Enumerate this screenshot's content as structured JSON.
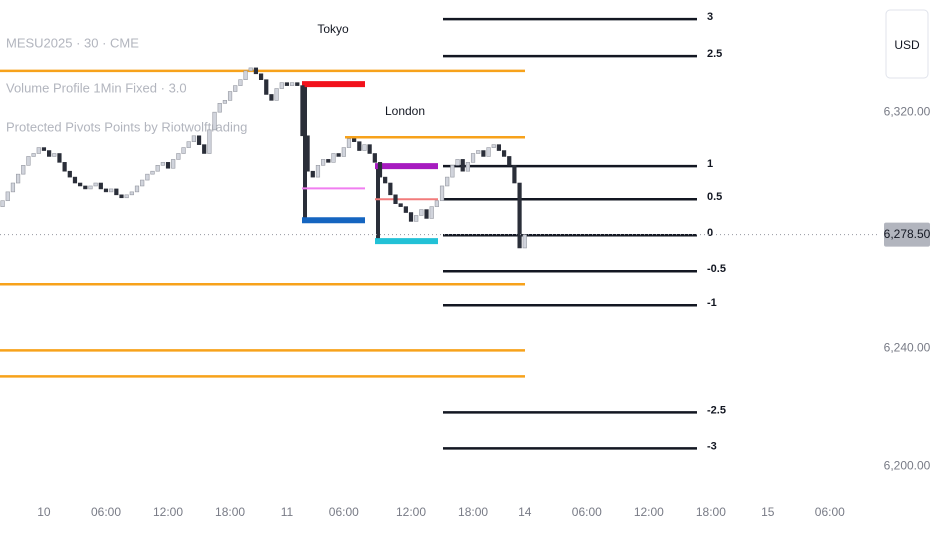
{
  "chart_data": {
    "type": "candlestick",
    "title": "MESU2025 · 30 · CME",
    "indicators": [
      "Volume Profile 1Min Fixed · 3.0",
      "Protected Pivots Points by Riotwolftrading"
    ],
    "currency": "USD",
    "up_color": "#d1d4dc",
    "down_color": "#2a2e39",
    "categories": [
      null,
      null,
      null,
      null,
      null,
      null,
      null,
      null,
      "10",
      null,
      null,
      null,
      null,
      null,
      null,
      null,
      null,
      null,
      null,
      null,
      "06:00",
      null,
      null,
      null,
      null,
      null,
      null,
      null,
      null,
      null,
      null,
      null,
      "12:00",
      null,
      null,
      null,
      null,
      null,
      null,
      null,
      null,
      null,
      null,
      null,
      "18:00",
      null,
      null,
      null,
      null,
      null,
      null,
      null,
      null,
      null,
      null,
      "11",
      null,
      null,
      null,
      null,
      null,
      null,
      null,
      null,
      null,
      null,
      "06:00",
      null,
      null,
      null,
      null,
      null,
      null,
      null,
      null,
      null,
      null,
      null,
      null,
      "12:00",
      null,
      null,
      null,
      null,
      null,
      null,
      null,
      null,
      null,
      null,
      null,
      "18:00",
      null,
      null,
      null,
      null,
      null,
      null,
      null,
      null,
      null,
      "14",
      null,
      null,
      null,
      null,
      null,
      null,
      null,
      null,
      null,
      null,
      null,
      "06:00",
      null,
      null,
      null,
      null,
      null,
      null,
      null,
      null,
      null,
      null,
      null,
      "12:00",
      null,
      null,
      null,
      null,
      null,
      null,
      null,
      null,
      null,
      null,
      null,
      "18:00",
      null,
      null,
      null,
      null,
      null,
      null,
      null,
      null,
      null,
      null,
      "15",
      null,
      null,
      null,
      null,
      null,
      null,
      null,
      null,
      null,
      null,
      null,
      "06:00"
    ],
    "open": [
      6288,
      6290,
      6293,
      6296,
      6299,
      6302,
      6305,
      6306,
      6308,
      6307,
      6305,
      6306,
      6303,
      6300,
      6298,
      6296,
      6295,
      6294,
      6295,
      6296,
      6294,
      6293,
      6294,
      6292,
      6291,
      6292,
      6293,
      6295,
      6297,
      6299,
      6300,
      6302,
      6303,
      6301,
      6304,
      6306,
      6308,
      6310,
      6312,
      6309,
      6306,
      6314,
      6320,
      6323,
      6324,
      6327,
      6329,
      6331,
      6334,
      6335,
      6333,
      6331,
      6326,
      6324,
      6328,
      6330,
      6329,
      6330,
      6329,
      6312,
      6300,
      6298,
      6302,
      6304,
      6303,
      6306,
      6305,
      6308,
      6311,
      6310,
      6307,
      6309,
      6306,
      6303,
      6298,
      6296,
      6292,
      6289,
      6288,
      6286,
      6283,
      6285,
      6287,
      6284,
      6288,
      6290,
      6295,
      6298,
      6302,
      6304,
      6300,
      6303,
      6306,
      6307,
      6305,
      6308,
      6309,
      6307,
      6305,
      6302,
      6296,
      6274,
      null,
      null,
      null,
      null,
      null,
      null,
      null,
      null,
      null,
      null,
      null,
      null,
      null,
      null,
      null,
      null,
      null,
      null,
      null,
      null,
      null,
      null,
      null,
      null,
      null,
      null,
      null,
      null,
      null,
      null,
      null,
      null,
      null,
      null,
      null,
      null,
      null,
      null,
      null,
      null,
      null,
      null,
      null,
      null,
      null,
      null,
      null,
      null,
      null,
      null,
      null,
      null,
      null,
      null,
      null,
      null,
      null,
      null,
      null
    ],
    "close": [
      6290,
      6293,
      6296,
      6299,
      6302,
      6305,
      6306,
      6308,
      6307,
      6305,
      6306,
      6303,
      6300,
      6298,
      6296,
      6295,
      6294,
      6295,
      6296,
      6294,
      6293,
      6294,
      6292,
      6291,
      6292,
      6293,
      6295,
      6297,
      6299,
      6300,
      6302,
      6303,
      6301,
      6304,
      6306,
      6308,
      6310,
      6312,
      6309,
      6306,
      6314,
      6320,
      6323,
      6324,
      6327,
      6329,
      6331,
      6334,
      6335,
      6333,
      6331,
      6326,
      6324,
      6328,
      6330,
      6329,
      6330,
      6329,
      6312,
      6300,
      6298,
      6302,
      6304,
      6303,
      6306,
      6305,
      6308,
      6311,
      6310,
      6307,
      6309,
      6306,
      6303,
      6298,
      6296,
      6292,
      6289,
      6288,
      6286,
      6283,
      6285,
      6287,
      6284,
      6288,
      6290,
      6295,
      6298,
      6302,
      6304,
      6300,
      6303,
      6306,
      6307,
      6305,
      6308,
      6309,
      6307,
      6305,
      6302,
      6296,
      6274,
      6278.5,
      null,
      null,
      null,
      null,
      null,
      null,
      null,
      null,
      null,
      null,
      null,
      null,
      null,
      null,
      null,
      null,
      null,
      null,
      null,
      null,
      null,
      null,
      null,
      null,
      null,
      null,
      null,
      null,
      null,
      null,
      null,
      null,
      null,
      null,
      null,
      null,
      null,
      null,
      null,
      null,
      null,
      null,
      null,
      null,
      null,
      null,
      null,
      null,
      null,
      null,
      null,
      null,
      null,
      null,
      null,
      null,
      null,
      null,
      null
    ],
    "ylim": [
      6192,
      6358
    ],
    "yticks": [
      {
        "value": 6320,
        "label": "6,320.00"
      },
      {
        "value": 6240,
        "label": "6,240.00"
      },
      {
        "value": 6200,
        "label": "6,200.00"
      }
    ],
    "last_price": {
      "value": 6278.5,
      "label": "6,278.50"
    },
    "pivot_color": "#f7a21b",
    "pivot_levels": [
      6334,
      6311.5,
      6261.7,
      6239.3,
      6230.5
    ],
    "fib_color": "#131722",
    "fib_levels": [
      {
        "label": 3,
        "price": 6351.5
      },
      {
        "label": 2.5,
        "price": 6339
      },
      {
        "label": 1,
        "price": 6301.7
      },
      {
        "label": 0.5,
        "price": 6290.5
      },
      {
        "label": 0,
        "price": 6278.3
      },
      {
        "label": -0.5,
        "price": 6266.1
      },
      {
        "label": -1,
        "price": 6254.6
      },
      {
        "label": -2.5,
        "price": 6218.3
      },
      {
        "label": -3,
        "price": 6206.1
      }
    ],
    "sessions": [
      {
        "name": "Tokyo",
        "high": 6329.5,
        "mid": 6294.2,
        "low": 6283.4,
        "high_color": "#f2111b",
        "mid_color": "#f07ef0",
        "low_color": "#1565c0"
      },
      {
        "name": "London",
        "high": 6301.7,
        "mid": 6290.5,
        "low": 6276.3,
        "high_color": "#a61bbf",
        "mid_color": "#f27b7b",
        "low_color": "#22c1d6"
      }
    ]
  }
}
